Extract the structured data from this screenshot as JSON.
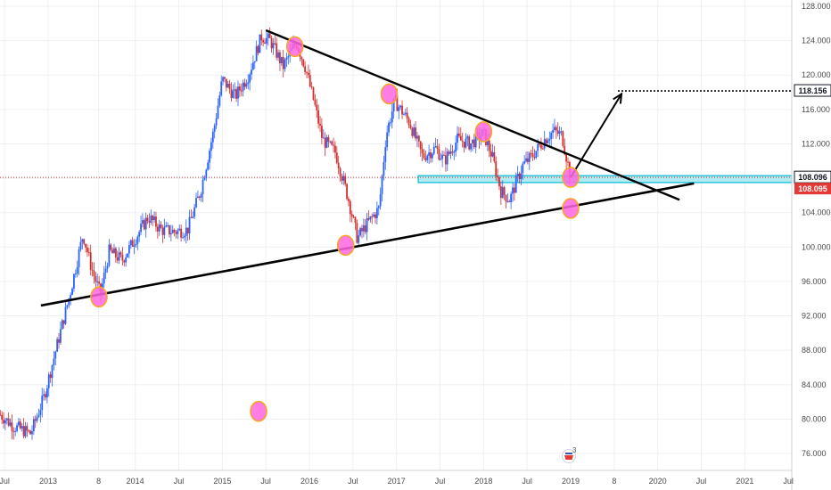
{
  "colors": {
    "background": "#ffffff",
    "grid": "#eef0f4",
    "axis_text": "#4a4a4a",
    "candle_up": "#2962ff",
    "candle_down": "#d32f2f",
    "trendline": "#000000",
    "circle_fill": "#ff66e0",
    "circle_stroke": "#f5a623",
    "support_band_fill": "#b2ebf2",
    "support_band_stroke": "#00bcd4",
    "last_price_line": "#d32f2f",
    "target_line": "#000000",
    "price_tag_dark": "#131722",
    "price_tag_red": "#e53935"
  },
  "chart_data": {
    "type": "candlestick",
    "x_tick_labels": [
      "Jul",
      "2013",
      "8",
      "2014",
      "Jul",
      "2015",
      "Jul",
      "2016",
      "Jul",
      "2017",
      "Jul",
      "2018",
      "Jul",
      "2019",
      "8",
      "2020",
      "Jul",
      "2021",
      "Jul"
    ],
    "y_tick_labels": [
      "128.000",
      "124.000",
      "120.000",
      "116.000",
      "112.000",
      "108.000",
      "104.000",
      "100.000",
      "96.000",
      "92.000",
      "88.000",
      "84.000",
      "80.000",
      "76.000"
    ],
    "ylim": [
      74.5,
      128.5
    ],
    "price_tags": [
      {
        "value": "118.156",
        "style": "dark"
      },
      {
        "value": "108.096",
        "style": "dark"
      },
      {
        "value": "108.095",
        "style": "red"
      }
    ],
    "last_price": 108.096,
    "target_price": 118.156,
    "support_zone": [
      107.5,
      108.3
    ],
    "descending_resistance": {
      "from": [
        "2015-07",
        125.2
      ],
      "to": [
        "2020-04",
        105.5
      ]
    },
    "ascending_support": {
      "from": [
        "2012-12",
        93.2
      ],
      "to": [
        "2020-06",
        107.4
      ]
    },
    "projection_arrow": {
      "from": [
        "2019-01",
        108.1
      ],
      "to": [
        "2019-08",
        117.8
      ]
    },
    "highlight_points": [
      [
        "2013-08",
        94.2
      ],
      [
        "2015-11",
        123.3
      ],
      [
        "2016-06",
        100.2
      ],
      [
        "2016-12",
        117.8
      ],
      [
        "2018-01",
        113.4
      ],
      [
        "2019-01",
        108.1
      ],
      [
        "2019-01",
        104.5
      ],
      [
        "2015-06",
        80.9
      ]
    ],
    "price_path": [
      [
        2012.45,
        80.5
      ],
      [
        2012.6,
        79.2
      ],
      [
        2012.8,
        78.3
      ],
      [
        2012.95,
        82.5
      ],
      [
        2013.1,
        88.5
      ],
      [
        2013.25,
        94.5
      ],
      [
        2013.4,
        101.5
      ],
      [
        2013.5,
        97.5
      ],
      [
        2013.6,
        94.5
      ],
      [
        2013.7,
        99.5
      ],
      [
        2013.85,
        98.5
      ],
      [
        2014.0,
        101.0
      ],
      [
        2014.15,
        103.5
      ],
      [
        2014.3,
        102.0
      ],
      [
        2014.45,
        101.8
      ],
      [
        2014.6,
        102.0
      ],
      [
        2014.75,
        106.5
      ],
      [
        2014.9,
        113.5
      ],
      [
        2015.0,
        119.5
      ],
      [
        2015.15,
        117.5
      ],
      [
        2015.3,
        120.0
      ],
      [
        2015.45,
        124.5
      ],
      [
        2015.55,
        124.0
      ],
      [
        2015.7,
        121.0
      ],
      [
        2015.85,
        123.8
      ],
      [
        2015.95,
        121.0
      ],
      [
        2016.05,
        117.0
      ],
      [
        2016.15,
        112.5
      ],
      [
        2016.3,
        111.0
      ],
      [
        2016.45,
        105.5
      ],
      [
        2016.55,
        101.0
      ],
      [
        2016.65,
        102.5
      ],
      [
        2016.8,
        104.5
      ],
      [
        2016.88,
        113.0
      ],
      [
        2016.98,
        117.0
      ],
      [
        2017.15,
        114.5
      ],
      [
        2017.3,
        110.5
      ],
      [
        2017.45,
        111.5
      ],
      [
        2017.55,
        110.0
      ],
      [
        2017.7,
        112.5
      ],
      [
        2017.85,
        112.0
      ],
      [
        2018.0,
        113.2
      ],
      [
        2018.1,
        110.5
      ],
      [
        2018.2,
        106.5
      ],
      [
        2018.3,
        105.5
      ],
      [
        2018.45,
        109.5
      ],
      [
        2018.55,
        110.5
      ],
      [
        2018.7,
        112.5
      ],
      [
        2018.8,
        113.5
      ],
      [
        2018.9,
        113.0
      ],
      [
        2019.0,
        108.1
      ]
    ]
  },
  "chart_logo": {
    "label": "3"
  }
}
